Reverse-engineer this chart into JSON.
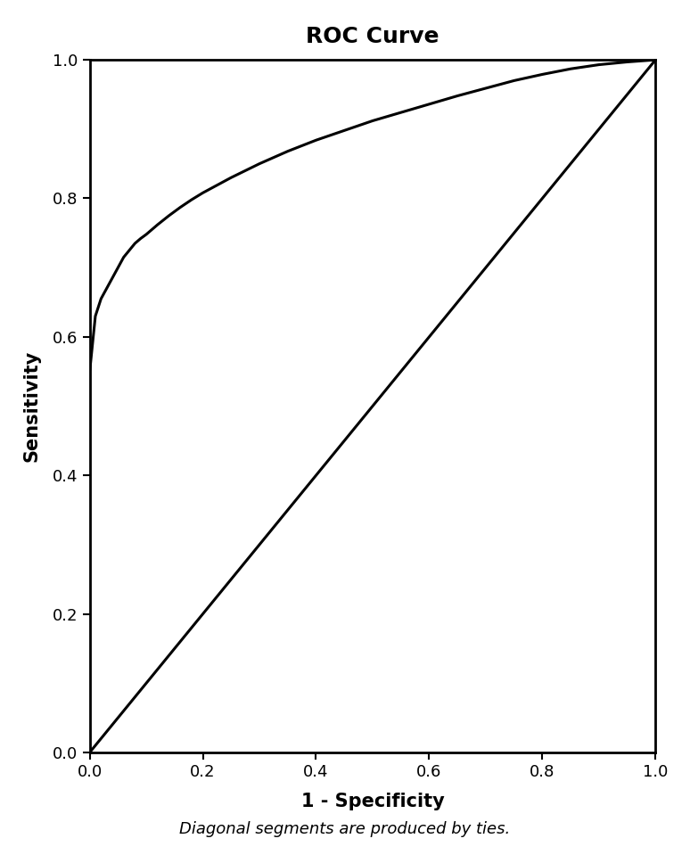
{
  "title": "ROC Curve",
  "xlabel": "1 - Specificity",
  "ylabel": "Sensitivity",
  "footnote": "Diagonal segments are produced by ties.",
  "xlim": [
    0.0,
    1.0
  ],
  "ylim": [
    0.0,
    1.0
  ],
  "xticks": [
    0.0,
    0.2,
    0.4,
    0.6,
    0.8,
    1.0
  ],
  "yticks": [
    0.0,
    0.2,
    0.4,
    0.6,
    0.8,
    1.0
  ],
  "background_color": "#ffffff",
  "line_color": "#000000",
  "diagonal_color": "#000000",
  "line_width": 2.2,
  "roc_x": [
    0.0,
    0.0,
    0.01,
    0.02,
    0.03,
    0.04,
    0.05,
    0.06,
    0.07,
    0.08,
    0.09,
    0.1,
    0.12,
    0.14,
    0.16,
    0.18,
    0.2,
    0.25,
    0.3,
    0.35,
    0.4,
    0.45,
    0.5,
    0.55,
    0.6,
    0.65,
    0.7,
    0.75,
    0.8,
    0.85,
    0.9,
    0.95,
    1.0
  ],
  "roc_y": [
    0.0,
    0.55,
    0.63,
    0.655,
    0.67,
    0.685,
    0.7,
    0.715,
    0.725,
    0.735,
    0.742,
    0.748,
    0.762,
    0.775,
    0.787,
    0.798,
    0.808,
    0.83,
    0.85,
    0.868,
    0.884,
    0.898,
    0.912,
    0.924,
    0.936,
    0.948,
    0.959,
    0.97,
    0.979,
    0.987,
    0.993,
    0.997,
    1.0
  ],
  "title_fontsize": 18,
  "label_fontsize": 15,
  "tick_fontsize": 13,
  "footnote_fontsize": 13,
  "title_fontweight": "bold",
  "label_fontweight": "bold"
}
